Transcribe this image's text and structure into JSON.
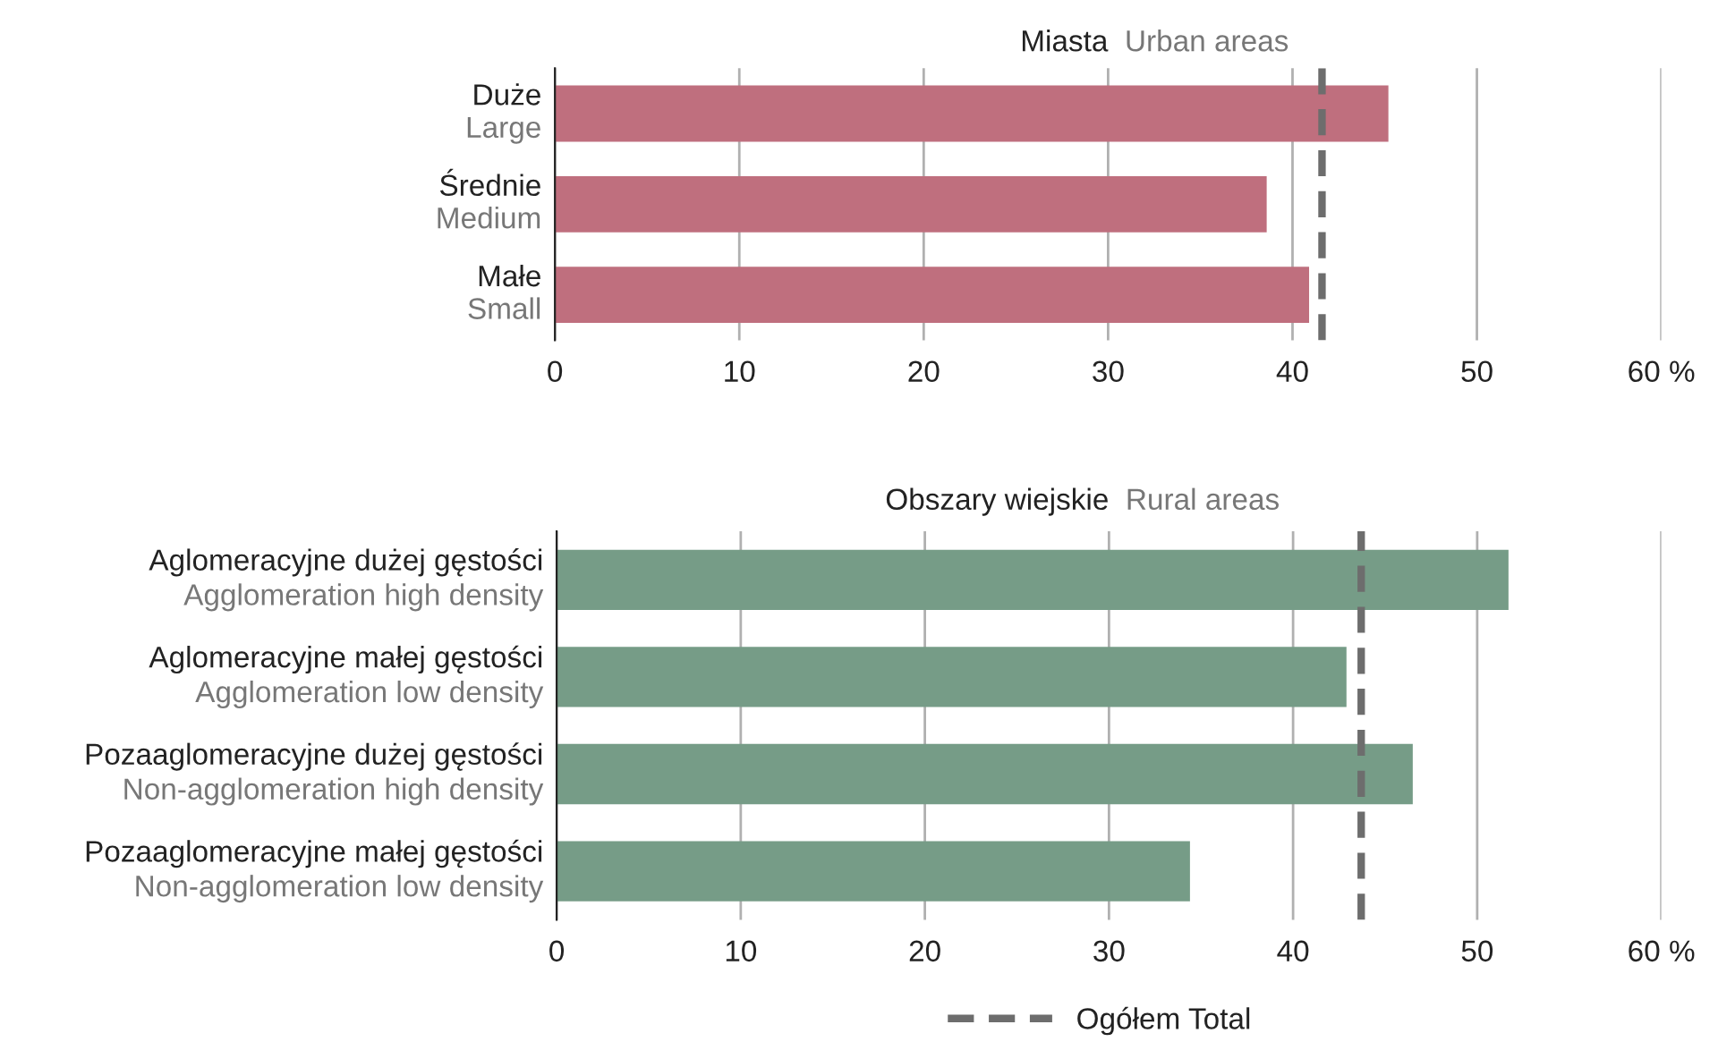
{
  "chart_data": [
    {
      "type": "bar",
      "orientation": "horizontal",
      "title": "Miasta",
      "subtitle": "Urban areas",
      "categories": [
        "Duże\nLarge",
        "Średnie\nMedium",
        "Małe\nSmall"
      ],
      "values": [
        45.2,
        38.6,
        40.9
      ],
      "color": "#bf6f7e",
      "xlim": [
        0,
        60
      ],
      "xticks": [
        0,
        10,
        20,
        30,
        40,
        50,
        {
          "value": 60,
          "label": "60 %"
        }
      ],
      "grid": "x",
      "ref_lines": [
        {
          "axis": "x",
          "value": 41.6,
          "color": "#6d6d6d",
          "line_style": "dashed"
        }
      ]
    },
    {
      "type": "bar",
      "orientation": "horizontal",
      "title": "Obszary wiejskie",
      "subtitle": "Rural areas",
      "categories": [
        "Aglomeracyjne dużej gęstości\nAgglomeration high density",
        "Aglomeracyjne małej gęstości\nAgglomeration low density",
        "Pozaaglomeracyjne dużej gęstości\nNon-agglomeration high density",
        "Pozaaglomeracyjne małej gęstości\nNon-agglomeration low density"
      ],
      "values": [
        51.7,
        42.9,
        46.5,
        34.4
      ],
      "color": "#769c87",
      "xlim": [
        0,
        60
      ],
      "xticks": [
        0,
        10,
        20,
        30,
        40,
        50,
        {
          "value": 60,
          "label": "60 %"
        }
      ],
      "grid": "x",
      "ref_lines": [
        {
          "axis": "x",
          "value": 43.7,
          "label": "Ogółem Total",
          "color": "#6d6d6d",
          "line_style": "dashed"
        }
      ],
      "legend": "bottom"
    }
  ]
}
